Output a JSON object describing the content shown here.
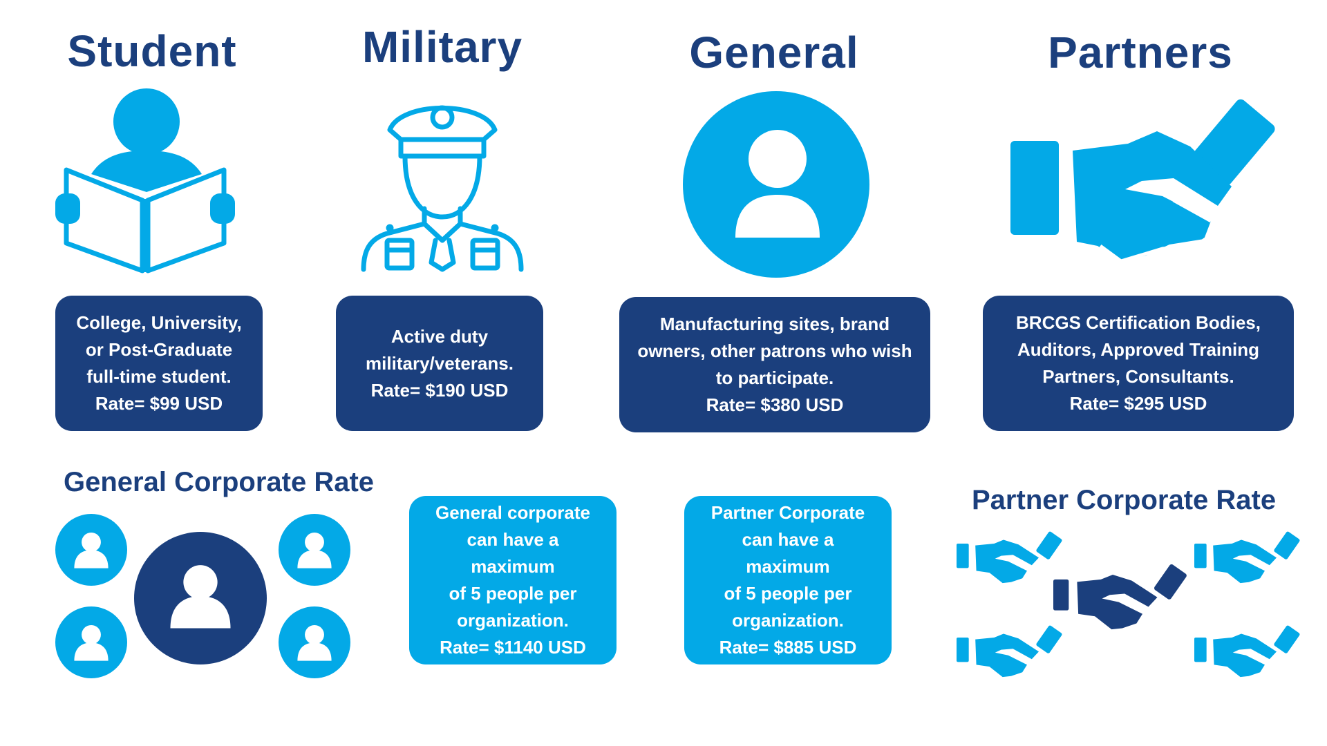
{
  "colors": {
    "dark_blue": "#1b3f7d",
    "light_blue": "#03a9e7",
    "background": "#ffffff"
  },
  "categories": [
    {
      "key": "student",
      "title": "Student",
      "icon": "reading-student-icon",
      "description": "College, University,\nor Post-Graduate\nfull-time student.",
      "rate": "Rate= $99 USD"
    },
    {
      "key": "military",
      "title": "Military",
      "icon": "military-officer-icon",
      "description": "Active duty\nmilitary/veterans.",
      "rate": "Rate= $190 USD"
    },
    {
      "key": "general",
      "title": "General",
      "icon": "user-circle-icon",
      "description": "Manufacturing sites, brand\nowners, other patrons who wish\nto participate.",
      "rate": "Rate= $380 USD"
    },
    {
      "key": "partners",
      "title": "Partners",
      "icon": "handshake-icon",
      "description": "BRCGS Certification Bodies,\nAuditors, Approved Training\nPartners, Consultants.",
      "rate": "Rate= $295 USD"
    }
  ],
  "corporate": [
    {
      "key": "general-corporate",
      "title": "General Corporate Rate",
      "icon": "user-group-icon",
      "description": "General corporate\ncan have a maximum\nof 5 people per\norganization.",
      "rate": "Rate= $1140 USD"
    },
    {
      "key": "partner-corporate",
      "title": "Partner Corporate Rate",
      "icon": "handshake-group-icon",
      "description": "Partner Corporate\ncan have a maximum\nof 5 people per\norganization.",
      "rate": "Rate= $885 USD"
    }
  ]
}
